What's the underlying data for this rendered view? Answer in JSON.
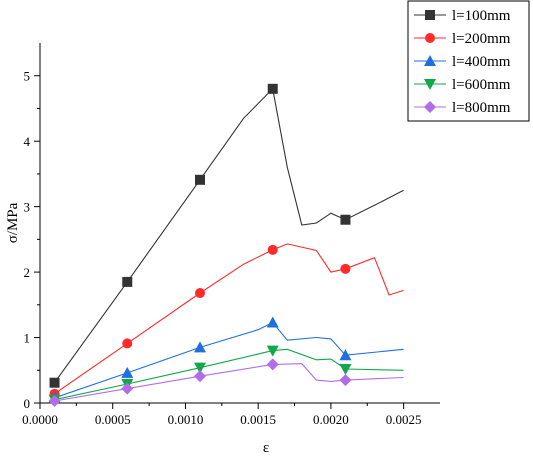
{
  "chart_data": {
    "type": "line",
    "xlabel": "ε",
    "ylabel": "σ/MPa",
    "xlim": [
      0.0,
      0.00275
    ],
    "ylim": [
      0,
      5.5
    ],
    "xticks": [
      0.0,
      0.0005,
      0.001,
      0.0015,
      0.002,
      0.0025
    ],
    "xtick_labels": [
      "0.0000",
      "0.0005",
      "0.0010",
      "0.0015",
      "0.0020",
      "0.0025"
    ],
    "yticks": [
      0,
      1,
      2,
      3,
      4,
      5
    ],
    "ytick_labels": [
      "0",
      "1",
      "2",
      "3",
      "4",
      "5"
    ],
    "grid": false,
    "legend_position": "top-right",
    "series": [
      {
        "name": "l=100mm",
        "color": "#333333",
        "marker": "square",
        "markers": [
          [
            0.0001,
            0.31
          ],
          [
            0.0006,
            1.85
          ],
          [
            0.0011,
            3.41
          ],
          [
            0.0016,
            4.8
          ],
          [
            0.0021,
            2.8
          ]
        ],
        "x": [
          0.0001,
          0.0006,
          0.0011,
          0.0014,
          0.0016,
          0.0017,
          0.0018,
          0.0019,
          0.002,
          0.00205,
          0.0021,
          0.0023,
          0.0025
        ],
        "y": [
          0.31,
          1.85,
          3.41,
          4.35,
          4.8,
          3.6,
          2.72,
          2.75,
          2.9,
          2.85,
          2.8,
          3.02,
          3.25
        ]
      },
      {
        "name": "l=200mm",
        "color": "#ff2a2a",
        "marker": "circle",
        "markers": [
          [
            0.0001,
            0.14
          ],
          [
            0.0006,
            0.91
          ],
          [
            0.0011,
            1.68
          ],
          [
            0.0016,
            2.34
          ],
          [
            0.0021,
            2.05
          ]
        ],
        "x": [
          0.0001,
          0.0006,
          0.0011,
          0.0014,
          0.0016,
          0.0017,
          0.0019,
          0.002,
          0.0021,
          0.0023,
          0.0024,
          0.0025
        ],
        "y": [
          0.14,
          0.91,
          1.68,
          2.12,
          2.34,
          2.43,
          2.33,
          2.0,
          2.05,
          2.22,
          1.65,
          1.72
        ]
      },
      {
        "name": "l=400mm",
        "color": "#1f6fe0",
        "marker": "triangle",
        "markers": [
          [
            0.0001,
            0.08
          ],
          [
            0.0006,
            0.46
          ],
          [
            0.0011,
            0.85
          ],
          [
            0.0016,
            1.23
          ],
          [
            0.0021,
            0.73
          ]
        ],
        "x": [
          0.0001,
          0.0006,
          0.0011,
          0.0015,
          0.0016,
          0.0017,
          0.0019,
          0.002,
          0.0021,
          0.0025
        ],
        "y": [
          0.08,
          0.46,
          0.85,
          1.12,
          1.23,
          0.96,
          1.0,
          0.98,
          0.73,
          0.82
        ]
      },
      {
        "name": "l=600mm",
        "color": "#11a84a",
        "marker": "triangle-down",
        "markers": [
          [
            0.0001,
            0.05
          ],
          [
            0.0006,
            0.29
          ],
          [
            0.0011,
            0.54
          ],
          [
            0.0016,
            0.8
          ],
          [
            0.0021,
            0.52
          ]
        ],
        "x": [
          0.0001,
          0.0006,
          0.0011,
          0.0016,
          0.0017,
          0.0019,
          0.002,
          0.0021,
          0.0025
        ],
        "y": [
          0.05,
          0.29,
          0.54,
          0.8,
          0.82,
          0.66,
          0.67,
          0.52,
          0.5
        ]
      },
      {
        "name": "l=800mm",
        "color": "#b36bea",
        "marker": "diamond",
        "markers": [
          [
            0.0001,
            0.03
          ],
          [
            0.0006,
            0.22
          ],
          [
            0.0011,
            0.41
          ],
          [
            0.0016,
            0.59
          ],
          [
            0.0021,
            0.35
          ]
        ],
        "x": [
          0.0001,
          0.0006,
          0.0011,
          0.0016,
          0.0018,
          0.0019,
          0.002,
          0.0021,
          0.0025
        ],
        "y": [
          0.03,
          0.22,
          0.41,
          0.59,
          0.6,
          0.35,
          0.33,
          0.35,
          0.39
        ]
      }
    ]
  }
}
